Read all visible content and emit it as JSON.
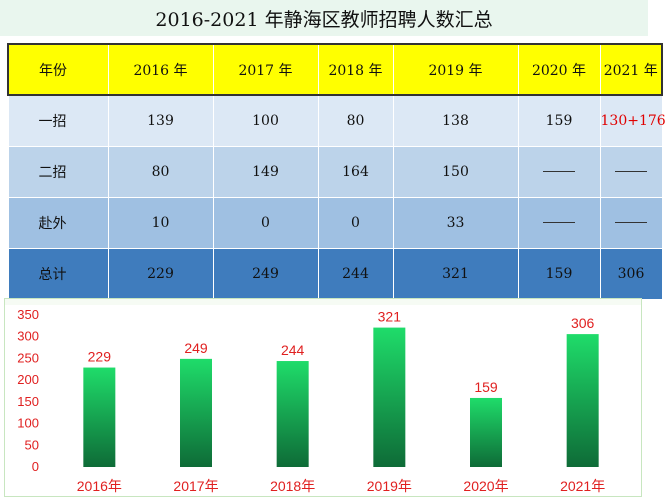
{
  "title": "2016-2021 年静海区教师招聘人数汇总",
  "table": {
    "header": [
      "年份",
      "2016 年",
      "2017 年",
      "2018 年",
      "2019 年",
      "2020 年",
      "2021 年"
    ],
    "rows": [
      {
        "label": "一招",
        "cells": [
          "139",
          "100",
          "80",
          "138",
          "159",
          "130+176"
        ]
      },
      {
        "label": "二招",
        "cells": [
          "80",
          "149",
          "164",
          "150",
          "",
          ""
        ]
      },
      {
        "label": "赴外",
        "cells": [
          "10",
          "0",
          "0",
          "33",
          "",
          ""
        ]
      },
      {
        "label": "总计",
        "cells": [
          "229",
          "249",
          "244",
          "321",
          "159",
          "306"
        ]
      }
    ]
  },
  "colors": {
    "header_bg": "#ffff00",
    "total_bg": "#3f7cbd",
    "bar_top": "#1fdc6a",
    "bar_bottom": "#0e6b37",
    "label_red": "#e02020"
  },
  "chart_data": {
    "type": "bar",
    "categories": [
      "2016年",
      "2017年",
      "2018年",
      "2019年",
      "2020年",
      "2021年"
    ],
    "values": [
      229,
      249,
      244,
      321,
      159,
      306
    ],
    "data_labels": [
      "229",
      "249",
      "244",
      "321",
      "159",
      "306"
    ],
    "title": "",
    "xlabel": "",
    "ylabel": "",
    "ylim": [
      0,
      350
    ],
    "yticks": [
      0,
      50,
      100,
      150,
      200,
      250,
      300,
      350
    ],
    "grid": false,
    "legend": "none"
  }
}
